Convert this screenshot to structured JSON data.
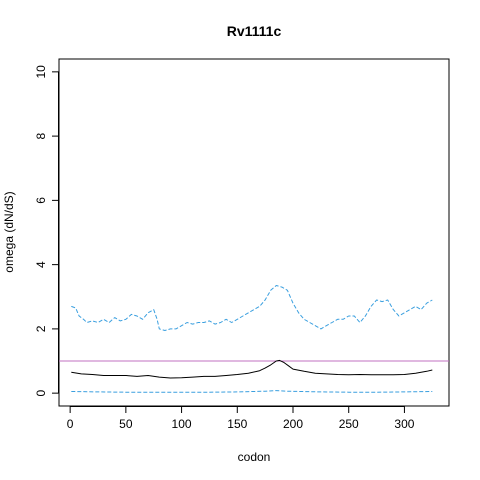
{
  "colors": {
    "background": "#ffffff",
    "axis": "#000000",
    "upper_series": "#3a9fdf",
    "mean_series": "#000000",
    "lower_series": "#3a9fdf",
    "reference_line": "#c070c0"
  },
  "chart_data": {
    "type": "line",
    "title": "Rv1111c",
    "xlabel": "codon",
    "ylabel": "omega (dN/dS)",
    "xlim": [
      -10,
      340
    ],
    "ylim": [
      -0.4,
      10.4
    ],
    "xticks": [
      0,
      50,
      100,
      150,
      200,
      250,
      300
    ],
    "yticks": [
      0,
      2,
      4,
      6,
      8,
      10
    ],
    "grid": false,
    "legend": "none",
    "reference_line": {
      "orientation": "horizontal",
      "y": 1
    },
    "series": [
      {
        "style": "dashed",
        "x": [
          1,
          5,
          8,
          12,
          15,
          20,
          25,
          30,
          35,
          40,
          45,
          50,
          55,
          60,
          65,
          70,
          75,
          78,
          80,
          85,
          90,
          95,
          100,
          105,
          110,
          115,
          120,
          125,
          130,
          135,
          140,
          145,
          150,
          155,
          160,
          165,
          170,
          175,
          180,
          185,
          190,
          195,
          200,
          205,
          210,
          215,
          220,
          225,
          230,
          235,
          240,
          245,
          250,
          255,
          260,
          265,
          270,
          275,
          280,
          285,
          290,
          295,
          300,
          305,
          310,
          315,
          320,
          325
        ],
        "y": [
          2.7,
          2.65,
          2.4,
          2.3,
          2.2,
          2.25,
          2.2,
          2.3,
          2.2,
          2.35,
          2.25,
          2.3,
          2.45,
          2.4,
          2.3,
          2.5,
          2.6,
          2.3,
          2.0,
          1.95,
          2.0,
          2.0,
          2.1,
          2.2,
          2.15,
          2.2,
          2.2,
          2.25,
          2.15,
          2.2,
          2.3,
          2.2,
          2.3,
          2.4,
          2.5,
          2.6,
          2.7,
          2.9,
          3.2,
          3.35,
          3.3,
          3.2,
          2.8,
          2.5,
          2.3,
          2.2,
          2.1,
          2.0,
          2.1,
          2.2,
          2.3,
          2.3,
          2.4,
          2.4,
          2.2,
          2.4,
          2.7,
          2.9,
          2.85,
          2.9,
          2.6,
          2.4,
          2.5,
          2.6,
          2.7,
          2.6,
          2.8,
          2.9
        ]
      },
      {
        "style": "solid",
        "x": [
          1,
          10,
          20,
          30,
          40,
          50,
          60,
          70,
          80,
          90,
          100,
          110,
          120,
          130,
          140,
          150,
          160,
          170,
          175,
          180,
          185,
          188,
          192,
          196,
          200,
          210,
          220,
          230,
          240,
          250,
          260,
          270,
          280,
          290,
          300,
          310,
          320,
          325
        ],
        "y": [
          0.65,
          0.6,
          0.58,
          0.55,
          0.55,
          0.55,
          0.52,
          0.55,
          0.5,
          0.47,
          0.48,
          0.5,
          0.52,
          0.52,
          0.55,
          0.58,
          0.62,
          0.7,
          0.78,
          0.88,
          1.0,
          1.02,
          0.95,
          0.85,
          0.75,
          0.68,
          0.62,
          0.6,
          0.58,
          0.57,
          0.58,
          0.57,
          0.57,
          0.57,
          0.58,
          0.62,
          0.68,
          0.72
        ]
      },
      {
        "style": "dashed",
        "x": [
          1,
          25,
          50,
          75,
          100,
          125,
          150,
          175,
          185,
          195,
          225,
          250,
          275,
          300,
          325
        ],
        "y": [
          0.05,
          0.04,
          0.03,
          0.03,
          0.03,
          0.03,
          0.04,
          0.06,
          0.08,
          0.06,
          0.04,
          0.03,
          0.03,
          0.04,
          0.05
        ]
      }
    ]
  }
}
